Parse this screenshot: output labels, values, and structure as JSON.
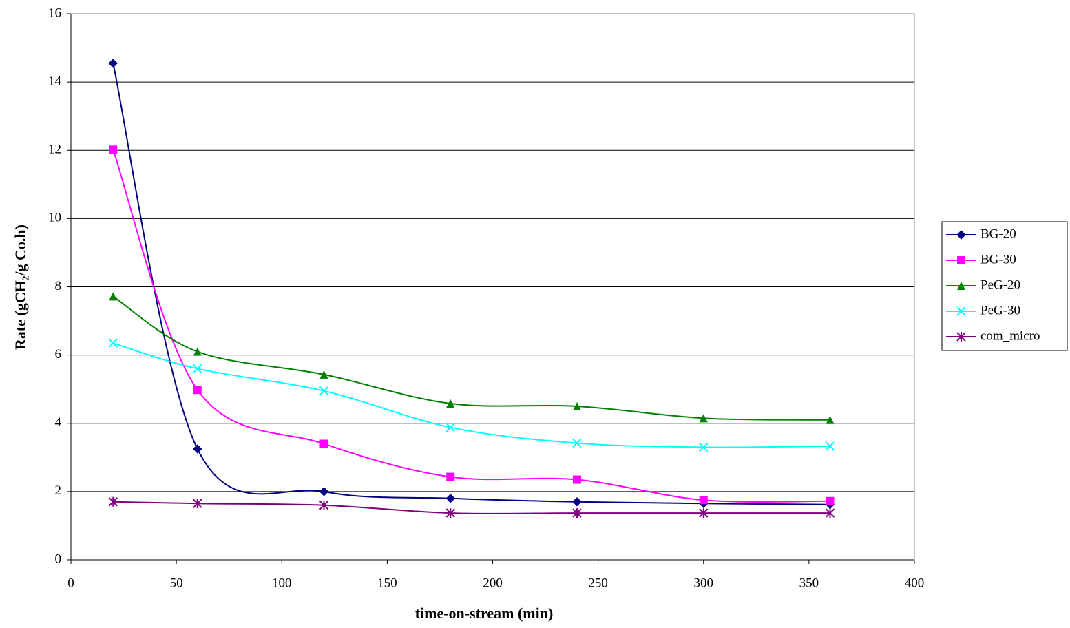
{
  "chart_data": {
    "type": "line",
    "smooth": true,
    "xlabel": "time-on-stream (min)",
    "ylabel": "Rate (gCH₂/g Co.h)",
    "x": [
      20,
      60,
      120,
      180,
      240,
      300,
      360
    ],
    "series": [
      {
        "name": "BG-20",
        "color": "#000080",
        "marker": "diamond",
        "values": [
          14.55,
          3.25,
          2.0,
          1.8,
          1.7,
          1.65,
          1.62
        ]
      },
      {
        "name": "BG-30",
        "color": "#ff00ff",
        "marker": "square",
        "values": [
          12.02,
          4.98,
          3.4,
          2.43,
          2.35,
          1.75,
          1.72
        ]
      },
      {
        "name": "PeG-20",
        "color": "#008000",
        "marker": "triangle",
        "values": [
          7.72,
          6.1,
          5.43,
          4.58,
          4.5,
          4.15,
          4.1
        ]
      },
      {
        "name": "PeG-30",
        "color": "#00ffff",
        "marker": "x",
        "values": [
          6.35,
          5.6,
          4.95,
          3.88,
          3.42,
          3.3,
          3.33
        ]
      },
      {
        "name": "com_micro",
        "color": "#800080",
        "marker": "asterisk",
        "values": [
          1.7,
          1.65,
          1.6,
          1.37,
          1.37,
          1.37,
          1.37
        ]
      }
    ],
    "xlim": [
      0,
      400
    ],
    "xticks": [
      0,
      50,
      100,
      150,
      200,
      250,
      300,
      350,
      400
    ],
    "ylim": [
      0,
      16
    ],
    "yticks": [
      0,
      2,
      4,
      6,
      8,
      10,
      12,
      14,
      16
    ],
    "grid": true,
    "legend": "right"
  }
}
